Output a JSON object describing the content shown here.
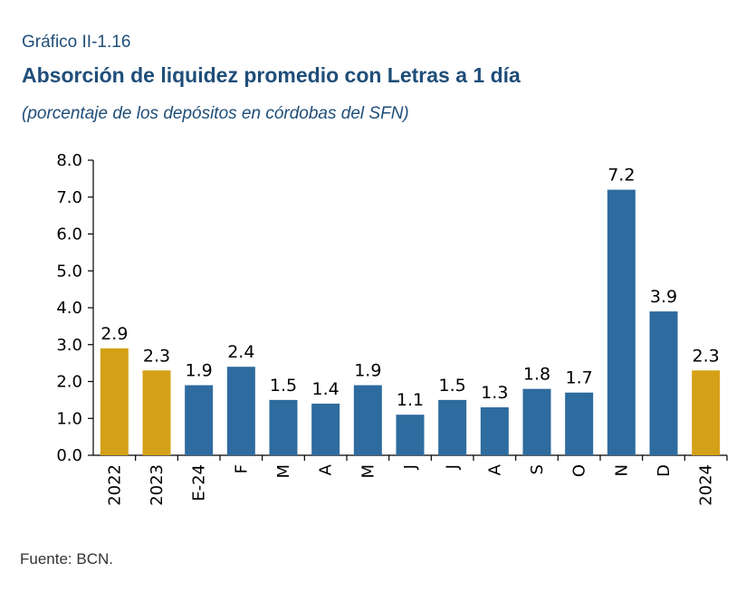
{
  "header": {
    "label": "Gráfico II-1.16",
    "title": "Absorción de liquidez promedio con Letras a 1 día",
    "subtitle": "(porcentaje de los depósitos en córdobas del SFN)"
  },
  "footer": {
    "source": "Fuente: BCN."
  },
  "colors": {
    "annual": "#d4a017",
    "monthly": "#2e6b9e"
  },
  "chart_data": {
    "type": "bar",
    "categories": [
      "2022",
      "2023",
      "E-24",
      "F",
      "M",
      "A",
      "M",
      "J",
      "J",
      "A",
      "S",
      "O",
      "N",
      "D",
      "2024"
    ],
    "values": [
      2.9,
      2.3,
      1.9,
      2.4,
      1.5,
      1.4,
      1.9,
      1.1,
      1.5,
      1.3,
      1.8,
      1.7,
      7.2,
      3.9,
      2.3
    ],
    "labels": [
      "2.9",
      "2.3",
      "1.9",
      "2.4",
      "1.5",
      "1.4",
      "1.9",
      "1.1",
      "1.5",
      "1.3",
      "1.8",
      "1.7",
      "7.2",
      "3.9",
      "2.3"
    ],
    "bar_kind": [
      "annual",
      "annual",
      "monthly",
      "monthly",
      "monthly",
      "monthly",
      "monthly",
      "monthly",
      "monthly",
      "monthly",
      "monthly",
      "monthly",
      "monthly",
      "monthly",
      "annual"
    ],
    "ylim": [
      0,
      8
    ],
    "yticks": [
      "0.0",
      "1.0",
      "2.0",
      "3.0",
      "4.0",
      "5.0",
      "6.0",
      "7.0",
      "8.0"
    ],
    "xlabel": "",
    "ylabel": "",
    "grid": false,
    "legend": "none"
  }
}
